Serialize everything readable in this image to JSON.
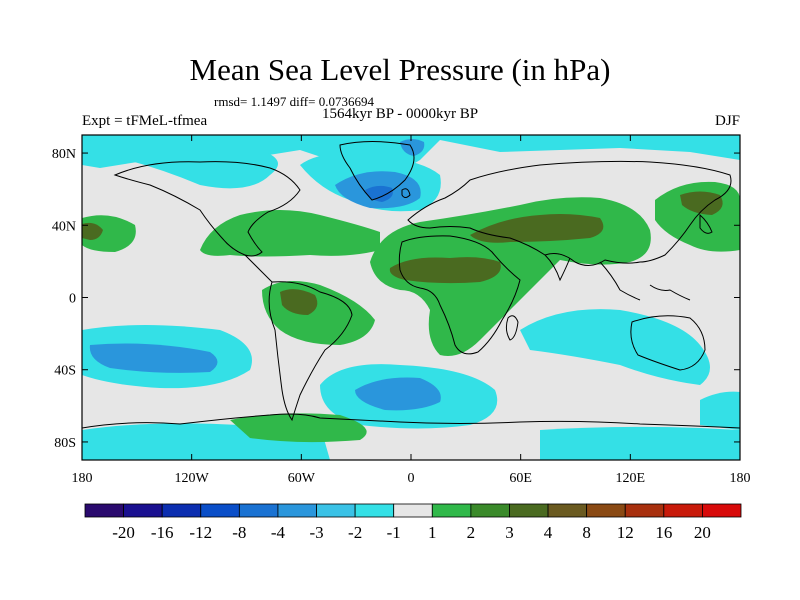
{
  "title": "Mean Sea Level Pressure (in hPa)",
  "stats": "rmsd= 1.1497 diff= 0.0736694",
  "period": "1564kyr BP - 0000kyr BP",
  "experiment": "Expt = tFMeL-tfmea",
  "season": "DJF",
  "map": {
    "lat_ticks": [
      {
        "value": 80,
        "label": "80N"
      },
      {
        "value": 40,
        "label": "40N"
      },
      {
        "value": 0,
        "label": "0"
      },
      {
        "value": -40,
        "label": "40S"
      },
      {
        "value": -80,
        "label": "80S"
      }
    ],
    "lon_ticks": [
      {
        "value": -180,
        "label": "180"
      },
      {
        "value": -120,
        "label": "120W"
      },
      {
        "value": -60,
        "label": "60W"
      },
      {
        "value": 0,
        "label": "0"
      },
      {
        "value": 60,
        "label": "60E"
      },
      {
        "value": 120,
        "label": "120E"
      },
      {
        "value": 180,
        "label": "180"
      }
    ],
    "lat_range": [
      -90,
      90
    ],
    "lon_range": [
      -180,
      180
    ]
  },
  "colorbar": {
    "colors": [
      "#2a0a6e",
      "#1a1090",
      "#0c2eb0",
      "#0a4ec8",
      "#1a72d2",
      "#2a96dc",
      "#3ac2e6",
      "#34e0e6",
      "#e6e6e6",
      "#30b84a",
      "#3a8a2a",
      "#4a6a20",
      "#6a5a20",
      "#8a4a14",
      "#a8300e",
      "#c81a0a",
      "#d80a0a"
    ],
    "labels": [
      "-20",
      "-16",
      "-12",
      "-8",
      "-4",
      "-3",
      "-2",
      "-1",
      "1",
      "2",
      "3",
      "4",
      "8",
      "12",
      "16",
      "20"
    ]
  },
  "legend": {
    "fill_gray": "#e6e6e6",
    "fill_cyan": "#34e0e6",
    "fill_blue": "#1a72d2",
    "fill_green": "#30b84a",
    "fill_olive": "#4a6a20"
  }
}
